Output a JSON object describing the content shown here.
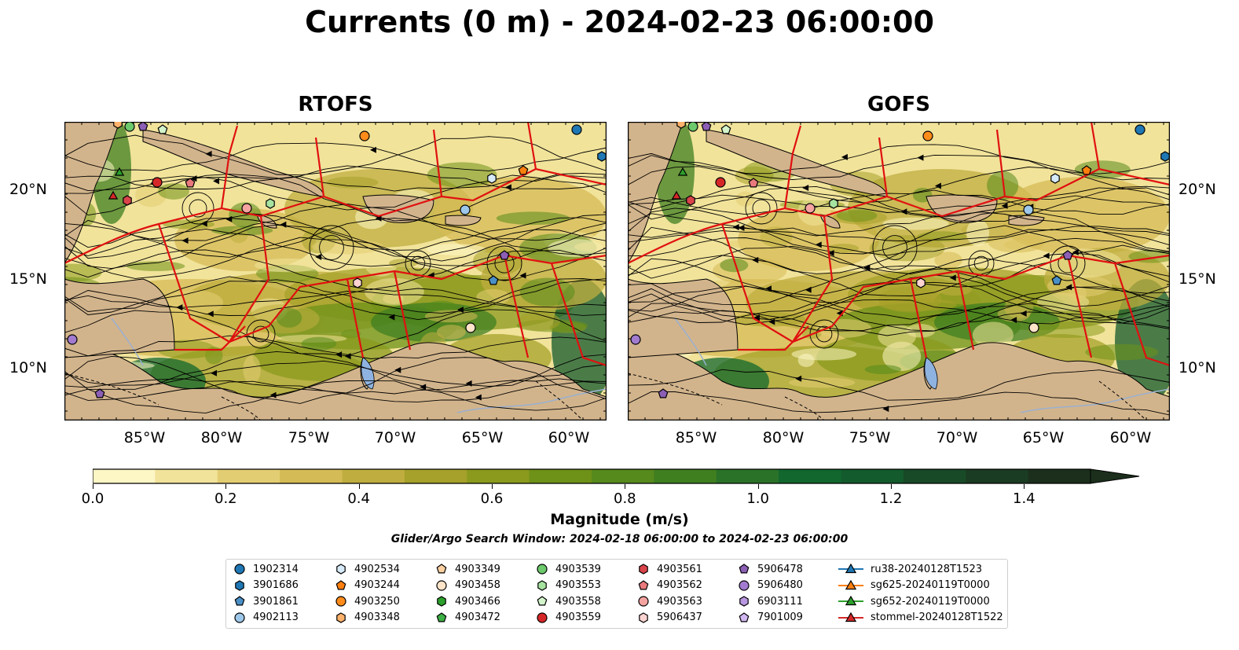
{
  "title": "Currents (0 m) - 2024-02-23 06:00:00",
  "panels": [
    {
      "title": "RTOFS"
    },
    {
      "title": "GOFS"
    }
  ],
  "lat_labels": [
    "20°N",
    "15°N",
    "10°N"
  ],
  "lon_labels": [
    "85°W",
    "80°W",
    "75°W",
    "70°W",
    "65°W",
    "60°W"
  ],
  "colorbar": {
    "label": "Magnitude (m/s)",
    "ticks": [
      "0.0",
      "0.2",
      "0.4",
      "0.6",
      "0.8",
      "1.0",
      "1.2",
      "1.4"
    ],
    "min": 0.0,
    "max": 1.5,
    "extend": "max",
    "colors": [
      "#fdf7c6",
      "#f1e39a",
      "#e3cd72",
      "#d5bb55",
      "#bfae3f",
      "#a5a12a",
      "#8b9a1d",
      "#6e9118",
      "#568a1c",
      "#3f7f20",
      "#2a7228",
      "#11672e",
      "#135a2c",
      "#184a27",
      "#1a3c22",
      "#1b2f1c"
    ]
  },
  "search_window": "Glider/Argo Search Window: 2024-02-18 06:00:00 to 2024-02-23 06:00:00",
  "legend": [
    {
      "label": "1902314",
      "marker": "circle",
      "color": "#1f77b4"
    },
    {
      "label": "3901686",
      "marker": "hexagon",
      "color": "#1f77b4"
    },
    {
      "label": "3901861",
      "marker": "pentagon",
      "color": "#4a90c6"
    },
    {
      "label": "4902113",
      "marker": "circle",
      "color": "#9ec8ea"
    },
    {
      "label": "4902534",
      "marker": "hexagon",
      "color": "#d6eaf8"
    },
    {
      "label": "4903244",
      "marker": "pentagon",
      "color": "#ff7f0e"
    },
    {
      "label": "4903250",
      "marker": "circle",
      "color": "#ff8c1a"
    },
    {
      "label": "4903348",
      "marker": "hexagon",
      "color": "#ffb26b"
    },
    {
      "label": "4903349",
      "marker": "pentagon",
      "color": "#ffd0a1"
    },
    {
      "label": "4903458",
      "marker": "circle",
      "color": "#ffe4c9"
    },
    {
      "label": "4903466",
      "marker": "hexagon",
      "color": "#2ca02c"
    },
    {
      "label": "4903472",
      "marker": "pentagon",
      "color": "#3cb043"
    },
    {
      "label": "4903539",
      "marker": "circle",
      "color": "#6cc96c"
    },
    {
      "label": "4903553",
      "marker": "hexagon",
      "color": "#a7e3a0"
    },
    {
      "label": "4903558",
      "marker": "pentagon",
      "color": "#d4f5cc"
    },
    {
      "label": "4903559",
      "marker": "circle",
      "color": "#d62728"
    },
    {
      "label": "4903561",
      "marker": "hexagon",
      "color": "#d9434a"
    },
    {
      "label": "4903562",
      "marker": "pentagon",
      "color": "#e8797c"
    },
    {
      "label": "4903563",
      "marker": "circle",
      "color": "#f4a3a0"
    },
    {
      "label": "5906437",
      "marker": "hexagon",
      "color": "#fcd3d0"
    },
    {
      "label": "5906478",
      "marker": "pentagon",
      "color": "#8c5fb5"
    },
    {
      "label": "5906480",
      "marker": "circle",
      "color": "#a27bd0"
    },
    {
      "label": "6903111",
      "marker": "hexagon",
      "color": "#b896e0"
    },
    {
      "label": "7901009",
      "marker": "pentagon",
      "color": "#d2b8f2"
    },
    {
      "label": "ru38-20240128T1523",
      "marker": "triangle-line",
      "color": "#1f77b4"
    },
    {
      "label": "sg625-20240119T0000",
      "marker": "triangle-line",
      "color": "#ff7f0e"
    },
    {
      "label": "sg652-20240119T0000",
      "marker": "triangle-line",
      "color": "#2ca02c"
    },
    {
      "label": "stommel-20240128T1522",
      "marker": "triangle-line",
      "color": "#d62728"
    }
  ]
}
